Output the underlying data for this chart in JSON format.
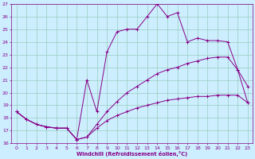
{
  "xlabel": "Windchill (Refroidissement éolien,°C)",
  "bg_color": "#cceeff",
  "grid_color": "#99ccbb",
  "line_color": "#880088",
  "xlim": [
    -0.5,
    23.5
  ],
  "ylim": [
    16,
    27
  ],
  "xticks": [
    0,
    1,
    2,
    3,
    4,
    5,
    6,
    7,
    8,
    9,
    10,
    11,
    12,
    13,
    14,
    15,
    16,
    17,
    18,
    19,
    20,
    21,
    22,
    23
  ],
  "yticks": [
    16,
    17,
    18,
    19,
    20,
    21,
    22,
    23,
    24,
    25,
    26,
    27
  ],
  "series": [
    {
      "x": [
        0,
        1,
        2,
        3,
        4,
        5,
        6,
        7,
        8,
        9,
        10,
        11,
        12,
        13,
        14,
        15,
        16,
        17,
        18,
        19,
        20,
        21,
        22,
        23
      ],
      "y": [
        18.5,
        17.9,
        17.5,
        17.3,
        17.2,
        17.2,
        16.3,
        16.5,
        17.2,
        17.8,
        18.2,
        18.5,
        18.8,
        19.0,
        19.2,
        19.4,
        19.5,
        19.6,
        19.7,
        19.7,
        19.8,
        19.8,
        19.8,
        19.2
      ]
    },
    {
      "x": [
        0,
        1,
        2,
        3,
        4,
        5,
        6,
        7,
        8,
        9,
        10,
        11,
        12,
        13,
        14,
        15,
        16,
        17,
        18,
        19,
        20,
        21,
        22,
        23
      ],
      "y": [
        18.5,
        17.9,
        17.5,
        17.3,
        17.2,
        17.2,
        16.3,
        16.5,
        17.5,
        18.5,
        19.3,
        20.0,
        20.5,
        21.0,
        21.5,
        21.8,
        22.0,
        22.3,
        22.5,
        22.7,
        22.8,
        22.8,
        21.8,
        19.2
      ]
    },
    {
      "x": [
        0,
        1,
        2,
        3,
        4,
        5,
        6,
        7,
        8,
        9,
        10,
        11,
        12,
        13,
        14,
        15,
        16,
        17,
        18,
        19,
        20,
        21,
        22,
        23
      ],
      "y": [
        18.5,
        17.9,
        17.5,
        17.3,
        17.2,
        17.2,
        16.3,
        21.0,
        18.5,
        23.2,
        24.8,
        25.0,
        25.0,
        26.0,
        27.0,
        26.0,
        26.3,
        24.0,
        24.3,
        24.1,
        24.1,
        24.0,
        21.8,
        20.5
      ]
    }
  ]
}
